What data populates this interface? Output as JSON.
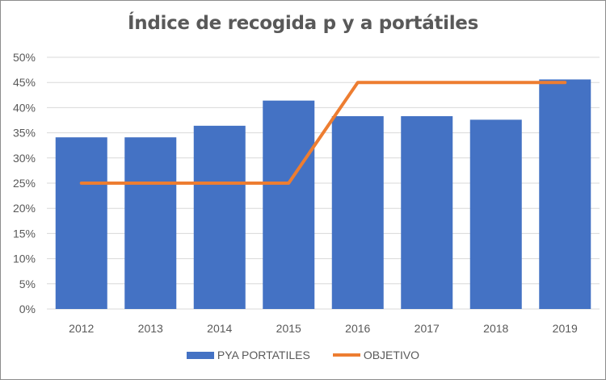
{
  "chart_data": {
    "type": "bar",
    "title": "Índice de recogida p y a portátiles",
    "categories": [
      "2012",
      "2013",
      "2014",
      "2015",
      "2016",
      "2017",
      "2018",
      "2019"
    ],
    "series": [
      {
        "name": "PYA PORTATILES",
        "type": "bar",
        "color": "#4472c4",
        "values": [
          34.1,
          34.1,
          36.4,
          41.4,
          38.3,
          38.3,
          37.6,
          45.6
        ]
      },
      {
        "name": "OBJETIVO",
        "type": "line",
        "color": "#ed7d31",
        "values": [
          25,
          25,
          25,
          25,
          45,
          45,
          45,
          45
        ]
      }
    ],
    "yticks": [
      "0%",
      "5%",
      "10%",
      "15%",
      "20%",
      "25%",
      "30%",
      "35%",
      "40%",
      "45%",
      "50%"
    ],
    "ylim": [
      0,
      50
    ],
    "xlabel": "",
    "ylabel": "",
    "grid": true,
    "legend": "bottom"
  }
}
